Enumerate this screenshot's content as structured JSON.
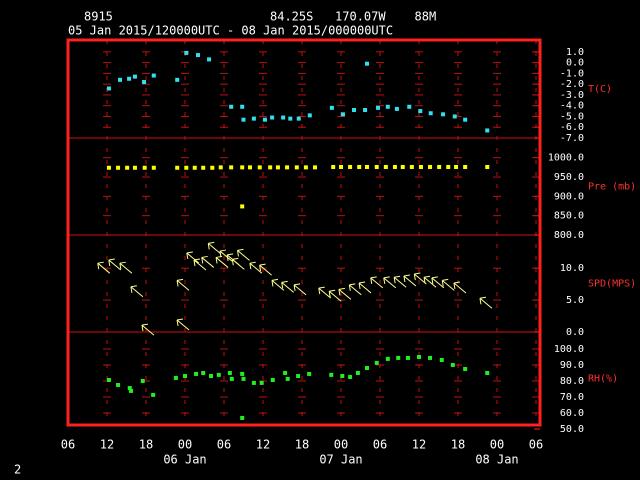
{
  "header": {
    "station": "8915",
    "location": "84.25S   170.07W    88M",
    "period": "05 Jan 2015/120000UTC - 08 Jan 2015/000000UTC"
  },
  "footer": "2",
  "chart_data": [
    {
      "type": "scatter",
      "ylabel": "T(C)",
      "color": "#30e0f0",
      "xlim": [
        6,
        78
      ],
      "ylim": [
        -7,
        2.1
      ],
      "yticks": [
        {
          "value": 1,
          "label": "1.0"
        },
        {
          "value": 0,
          "label": "0.0"
        },
        {
          "value": -1,
          "label": "-1.0"
        },
        {
          "value": -2,
          "label": "-2.0"
        },
        {
          "value": -3,
          "label": "-3.0"
        },
        {
          "value": -4,
          "label": "-4.0"
        },
        {
          "value": -5,
          "label": "-5.0"
        },
        {
          "value": -6,
          "label": "-6.0"
        },
        {
          "value": -7,
          "label": "-7.0"
        }
      ],
      "x": [
        12.3,
        14.0,
        15.4,
        16.3,
        17.7,
        19.2,
        22.8,
        24.2,
        26.0,
        27.7,
        31.1,
        32.8,
        33.0,
        34.6,
        36.3,
        37.4,
        39.1,
        40.2,
        41.5,
        43.2,
        46.6,
        48.3,
        50.0,
        51.7,
        52.0,
        53.7,
        55.2,
        56.6,
        58.5,
        60.2,
        61.8,
        63.7,
        65.5,
        67.1,
        70.5
      ],
      "values": [
        -2.4,
        -1.6,
        -1.5,
        -1.3,
        -1.8,
        -1.2,
        -1.6,
        0.9,
        0.7,
        0.3,
        -4.1,
        -4.1,
        -5.3,
        -5.2,
        -5.3,
        -5.1,
        -5.1,
        -5.2,
        -5.2,
        -4.9,
        -4.2,
        -4.8,
        -4.4,
        -4.4,
        -0.1,
        -4.2,
        -4.1,
        -4.3,
        -4.1,
        -4.5,
        -4.7,
        -4.8,
        -5.0,
        -5.3,
        -6.3
      ]
    },
    {
      "type": "scatter",
      "ylabel": "Pre (mb)",
      "color": "#ffff00",
      "xlim": [
        6,
        78
      ],
      "ylim": [
        800,
        1051
      ],
      "yticks": [
        {
          "value": 1000,
          "label": "1000.0"
        },
        {
          "value": 950,
          "label": "950.0"
        },
        {
          "value": 900,
          "label": "900.0"
        },
        {
          "value": 850,
          "label": "850.0"
        },
        {
          "value": 800,
          "label": "800.0"
        }
      ],
      "x": [
        12.3,
        13.7,
        15.1,
        16.3,
        17.8,
        19.2,
        22.8,
        24.2,
        25.5,
        26.8,
        28.2,
        29.5,
        31.1,
        32.8,
        32.8,
        34.0,
        35.5,
        37.1,
        38.3,
        39.7,
        41.2,
        42.6,
        44.0,
        46.8,
        48.0,
        49.4,
        50.8,
        52.0,
        53.5,
        54.9,
        56.3,
        57.5,
        58.9,
        60.3,
        61.7,
        63.1,
        64.5,
        65.7,
        67.1,
        70.5
      ],
      "values": [
        974,
        974,
        974,
        974,
        974,
        974,
        974,
        974,
        974,
        974,
        974,
        975,
        975,
        975,
        874,
        975,
        975,
        975,
        975,
        975,
        975,
        975,
        975,
        976,
        976,
        976,
        976,
        976,
        976,
        976,
        976,
        976,
        976,
        976,
        976,
        976,
        976,
        976,
        976,
        976
      ]
    },
    {
      "type": "wind",
      "ylabel": "SPD(MPS)",
      "color": "#ffff90",
      "xlim": [
        6,
        78
      ],
      "ylim": [
        0,
        15.2
      ],
      "yticks": [
        {
          "value": 10,
          "label": "10.0"
        },
        {
          "value": 5,
          "label": "5.0"
        },
        {
          "value": 0,
          "label": "0.0"
        }
      ],
      "x": [
        11.5,
        13.2,
        14.9,
        16.6,
        18.3,
        23.7,
        23.7,
        25.2,
        26.3,
        27.5,
        28.5,
        29.7,
        30.3,
        31.4,
        32.2,
        33.0,
        34.9,
        36.4,
        38.3,
        39.8,
        41.7,
        45.5,
        47.1,
        48.6,
        50.2,
        51.7,
        53.5,
        55.5,
        57.1,
        58.6,
        60.2,
        61.7,
        62.9,
        64.5,
        66.3,
        70.3
      ],
      "values": [
        10.0,
        10.5,
        10.0,
        6.3,
        0.3,
        7.3,
        1.1,
        11.6,
        10.5,
        10.9,
        13.1,
        10.9,
        11.9,
        11.3,
        10.6,
        12.0,
        10.0,
        9.7,
        7.3,
        7.0,
        6.6,
        6.1,
        5.6,
        5.9,
        6.6,
        6.9,
        7.7,
        7.7,
        7.8,
        8.0,
        8.3,
        7.8,
        7.7,
        7.3,
        6.9,
        4.5
      ]
    },
    {
      "type": "scatter",
      "ylabel": "RH(%)",
      "color": "#20f020",
      "xlim": [
        6,
        78
      ],
      "ylim": [
        52.5,
        110.6
      ],
      "yticks": [
        {
          "value": 100,
          "label": "100.0"
        },
        {
          "value": 90,
          "label": "90.0"
        },
        {
          "value": 80,
          "label": "80.0"
        },
        {
          "value": 70,
          "label": "70.0"
        },
        {
          "value": 60,
          "label": "60.0"
        },
        {
          "value": 50,
          "label": "50.0"
        }
      ],
      "xticks": [
        {
          "value": 6,
          "label": "06"
        },
        {
          "value": 12,
          "label": "12"
        },
        {
          "value": 18,
          "label": "18"
        },
        {
          "value": 24,
          "label": "00"
        },
        {
          "value": 30,
          "label": "06"
        },
        {
          "value": 36,
          "label": "12"
        },
        {
          "value": 42,
          "label": "18"
        },
        {
          "value": 48,
          "label": "00"
        },
        {
          "value": 54,
          "label": "06"
        },
        {
          "value": 60,
          "label": "12"
        },
        {
          "value": 66,
          "label": "18"
        },
        {
          "value": 72,
          "label": "00"
        },
        {
          "value": 78,
          "label": "06"
        }
      ],
      "dayticks": [
        {
          "value": 24,
          "label": "06 Jan"
        },
        {
          "value": 48,
          "label": "07 Jan"
        },
        {
          "value": 72,
          "label": "08 Jan"
        }
      ],
      "x": [
        12.3,
        13.7,
        15.5,
        15.7,
        17.5,
        19.1,
        22.6,
        24.0,
        25.7,
        26.8,
        28.0,
        29.2,
        30.9,
        31.2,
        32.8,
        33.0,
        32.8,
        34.6,
        35.8,
        37.5,
        39.4,
        39.8,
        41.4,
        43.1,
        46.5,
        48.2,
        49.4,
        50.6,
        52.0,
        53.5,
        55.2,
        56.8,
        58.3,
        60.0,
        61.7,
        63.5,
        65.2,
        67.1,
        70.5
      ],
      "values": [
        80.6,
        77.5,
        75.6,
        73.8,
        80.0,
        71.3,
        81.9,
        83.1,
        84.4,
        85.0,
        83.1,
        83.8,
        85.0,
        81.3,
        84.4,
        81.3,
        56.9,
        78.8,
        78.8,
        80.6,
        85.0,
        81.3,
        83.1,
        84.4,
        83.8,
        83.1,
        82.5,
        85.0,
        88.1,
        91.3,
        93.8,
        94.4,
        94.4,
        95.0,
        94.4,
        93.1,
        90.0,
        87.5,
        85.0
      ]
    }
  ]
}
